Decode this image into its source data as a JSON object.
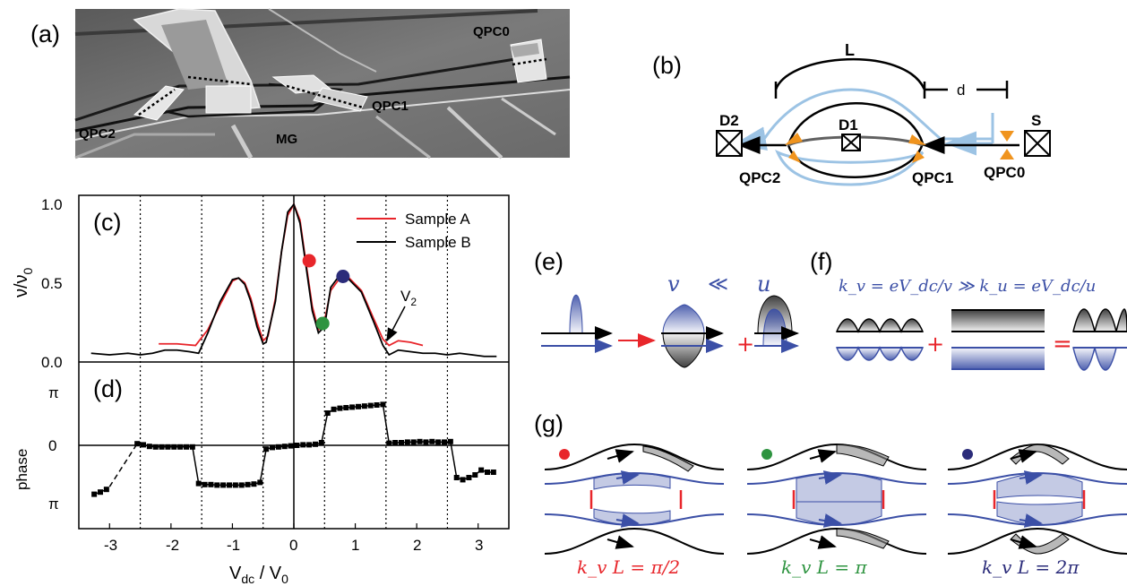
{
  "panel_labels": [
    "(a)",
    "(b)",
    "(c)",
    "(d)",
    "(e)",
    "(f)",
    "(g)"
  ],
  "sem": {
    "labels": {
      "qpc0": "QPC0",
      "qpc1": "QPC1",
      "qpc2": "QPC2",
      "mg": "MG"
    }
  },
  "schematic": {
    "L": "L",
    "d": "d",
    "D1": "D1",
    "D2": "D2",
    "S": "S",
    "QPC0": "QPC0",
    "QPC1": "QPC1",
    "QPC2": "QPC2",
    "colors": {
      "path": "#000000",
      "light_blue": "#9cc3e4",
      "orange": "#f0941e",
      "arm_gray": "#606060"
    }
  },
  "panel_c": {
    "ylabel_main": "ν/ν",
    "ylabel_sub": "0",
    "legend": [
      "Sample A",
      "Sample B"
    ],
    "v2_label": "V",
    "v2_sub": "2",
    "yticks": [
      "0.0",
      "0.5",
      "1.0"
    ]
  },
  "panel_d": {
    "ylabel": "phase",
    "yticks": [
      "π",
      "0",
      "π"
    ]
  },
  "xaxis": {
    "label_main": "V",
    "label_sub1": "dc",
    "label_mid": " / V",
    "label_sub2": "0",
    "ticks": [
      "-3",
      "-2",
      "-1",
      "0",
      "1",
      "2",
      "3"
    ]
  },
  "panel_e": {
    "v": "v",
    "ll": "≪",
    "u": "u"
  },
  "panel_f": {
    "equation": "k_v = eV_dc/v ≫ k_u = eV_dc/u"
  },
  "panel_g": {
    "captions": [
      "k_v L = π/2",
      "k_v L = π",
      "k_v L = 2π"
    ]
  },
  "colors": {
    "sample_a": "#e8242a",
    "sample_b": "#000000",
    "blue": "#3b4fa6",
    "red_dot": "#e8262b",
    "green_dot": "#2e9440",
    "navy_dot": "#2b2c7a"
  },
  "chart_data": [
    {
      "type": "line",
      "panel": "(c)",
      "xlabel": "V_dc / V_0",
      "ylabel": "ν/ν_0",
      "xlim": [
        -3.5,
        3.5
      ],
      "ylim": [
        0,
        1.05
      ],
      "grid": false,
      "legend_position": "top-right",
      "vertical_dotted_lines_at": [
        -2.5,
        -1.5,
        -0.5,
        0.5,
        1.5,
        2.5
      ],
      "series": [
        {
          "name": "Sample A",
          "color": "#e8242a",
          "x": [
            -2.2,
            -1.9,
            -1.6,
            -1.4,
            -1.2,
            -1.0,
            -0.9,
            -0.8,
            -0.7,
            -0.6,
            -0.5,
            -0.42,
            -0.3,
            -0.2,
            -0.1,
            0.0,
            0.1,
            0.2,
            0.3,
            0.4,
            0.48,
            0.6,
            0.75,
            0.9,
            1.1,
            1.3,
            1.45,
            1.55,
            1.7,
            1.9,
            2.1
          ],
          "values": [
            0.11,
            0.11,
            0.1,
            0.2,
            0.36,
            0.51,
            0.53,
            0.5,
            0.4,
            0.25,
            0.13,
            0.16,
            0.4,
            0.7,
            0.93,
            1.0,
            0.9,
            0.62,
            0.35,
            0.2,
            0.22,
            0.45,
            0.53,
            0.53,
            0.45,
            0.27,
            0.14,
            0.1,
            0.13,
            0.12,
            0.1
          ]
        },
        {
          "name": "Sample B",
          "color": "#000000",
          "x": [
            -3.3,
            -3.0,
            -2.7,
            -2.5,
            -2.3,
            -2.1,
            -1.9,
            -1.7,
            -1.55,
            -1.4,
            -1.2,
            -1.0,
            -0.9,
            -0.8,
            -0.7,
            -0.6,
            -0.5,
            -0.45,
            -0.3,
            -0.2,
            -0.1,
            0.0,
            0.1,
            0.2,
            0.3,
            0.4,
            0.5,
            0.6,
            0.75,
            0.9,
            1.1,
            1.3,
            1.45,
            1.55,
            1.7,
            1.9,
            2.1,
            2.3,
            2.5,
            2.7,
            2.9,
            3.1,
            3.3
          ],
          "values": [
            0.05,
            0.04,
            0.05,
            0.04,
            0.05,
            0.07,
            0.07,
            0.06,
            0.05,
            0.18,
            0.38,
            0.52,
            0.53,
            0.49,
            0.38,
            0.22,
            0.11,
            0.12,
            0.38,
            0.7,
            0.95,
            1.0,
            0.88,
            0.6,
            0.32,
            0.18,
            0.22,
            0.47,
            0.55,
            0.52,
            0.44,
            0.25,
            0.1,
            0.04,
            0.07,
            0.06,
            0.05,
            0.05,
            0.04,
            0.05,
            0.04,
            0.03,
            0.03
          ]
        }
      ],
      "markers": [
        {
          "x": 0.25,
          "y": 0.64,
          "color": "#e8262b"
        },
        {
          "x": 0.47,
          "y": 0.24,
          "color": "#2e9440"
        },
        {
          "x": 0.8,
          "y": 0.54,
          "color": "#2b2c7a"
        }
      ],
      "annotation": {
        "text": "V_2",
        "points_to_x": 1.5,
        "points_to_y": 0.1
      }
    },
    {
      "type": "line",
      "panel": "(d)",
      "ylabel": "phase",
      "xlim": [
        -3.5,
        3.5
      ],
      "ylim": [
        -1.3,
        1.3
      ],
      "y_units": "π",
      "grid": false,
      "dashed_segment": {
        "x": [
          -3.0,
          -2.55
        ],
        "values": [
          -0.77,
          0.03
        ]
      },
      "series": [
        {
          "name": "",
          "color": "#000000",
          "x": [
            -3.25,
            -3.15,
            -3.05,
            -2.55,
            -2.45,
            -2.35,
            -2.25,
            -2.15,
            -2.05,
            -1.95,
            -1.85,
            -1.75,
            -1.65,
            -1.55,
            -1.45,
            -1.35,
            -1.25,
            -1.15,
            -1.05,
            -0.95,
            -0.85,
            -0.75,
            -0.65,
            -0.55,
            -0.45,
            -0.35,
            -0.25,
            -0.15,
            -0.05,
            0.05,
            0.15,
            0.25,
            0.35,
            0.45,
            0.55,
            0.65,
            0.75,
            0.85,
            0.95,
            1.05,
            1.15,
            1.25,
            1.35,
            1.45,
            1.55,
            1.65,
            1.75,
            1.85,
            1.95,
            2.05,
            2.15,
            2.25,
            2.35,
            2.45,
            2.55,
            2.65,
            2.75,
            2.85,
            2.95,
            3.05,
            3.15,
            3.25
          ],
          "values": [
            -0.91,
            -0.87,
            -0.82,
            0.03,
            0.01,
            -0.02,
            -0.03,
            -0.03,
            -0.03,
            -0.03,
            -0.03,
            -0.03,
            -0.03,
            -0.71,
            -0.73,
            -0.73,
            -0.74,
            -0.74,
            -0.74,
            -0.74,
            -0.74,
            -0.73,
            -0.72,
            -0.69,
            -0.07,
            -0.04,
            -0.03,
            -0.02,
            -0.01,
            0.0,
            0.01,
            0.01,
            0.02,
            0.05,
            0.6,
            0.67,
            0.69,
            0.7,
            0.71,
            0.72,
            0.73,
            0.74,
            0.75,
            0.76,
            0.04,
            0.05,
            0.05,
            0.06,
            0.06,
            0.07,
            0.06,
            0.07,
            0.06,
            0.06,
            0.07,
            -0.6,
            -0.64,
            -0.6,
            -0.55,
            -0.46,
            -0.5,
            -0.5
          ]
        }
      ]
    }
  ]
}
